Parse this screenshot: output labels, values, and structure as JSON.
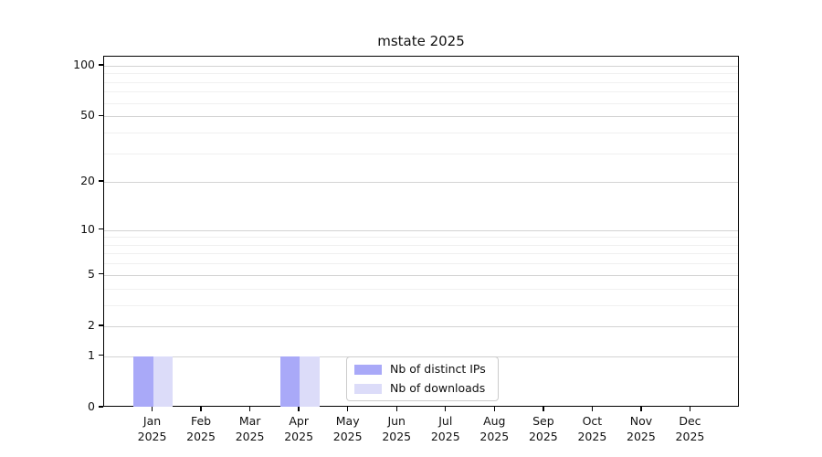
{
  "title": "mstate 2025",
  "chart_data": {
    "type": "bar",
    "title": "mstate 2025",
    "categories": [
      {
        "month": "Jan",
        "year": "2025"
      },
      {
        "month": "Feb",
        "year": "2025"
      },
      {
        "month": "Mar",
        "year": "2025"
      },
      {
        "month": "Apr",
        "year": "2025"
      },
      {
        "month": "May",
        "year": "2025"
      },
      {
        "month": "Jun",
        "year": "2025"
      },
      {
        "month": "Jul",
        "year": "2025"
      },
      {
        "month": "Aug",
        "year": "2025"
      },
      {
        "month": "Sep",
        "year": "2025"
      },
      {
        "month": "Oct",
        "year": "2025"
      },
      {
        "month": "Nov",
        "year": "2025"
      },
      {
        "month": "Dec",
        "year": "2025"
      }
    ],
    "series": [
      {
        "name": "Nb of distinct IPs",
        "color": "#a9a9f8",
        "values": [
          1,
          0,
          0,
          1,
          0,
          0,
          0,
          0,
          0,
          0,
          0,
          0
        ]
      },
      {
        "name": "Nb of downloads",
        "color": "#dcdcf9",
        "values": [
          1,
          0,
          0,
          1,
          0,
          0,
          0,
          0,
          0,
          0,
          0,
          0
        ]
      }
    ],
    "xlabel": "",
    "ylabel": "",
    "yscale": "log10(1+x)",
    "ylim": [
      0,
      113
    ],
    "y_major_ticks": [
      0,
      1,
      2,
      5,
      10,
      20,
      50,
      100
    ],
    "y_minor_gridlines": [
      3,
      4,
      6,
      7,
      8,
      9,
      30,
      40,
      60,
      70,
      80,
      90
    ],
    "grid": true,
    "legend_position": "lower center inside plot"
  },
  "colors": {
    "axis": "#000000",
    "grid_major": "#d3d3d3",
    "grid_minor": "#f0f0f0",
    "background": "#ffffff",
    "legend_border": "#cccccc"
  }
}
